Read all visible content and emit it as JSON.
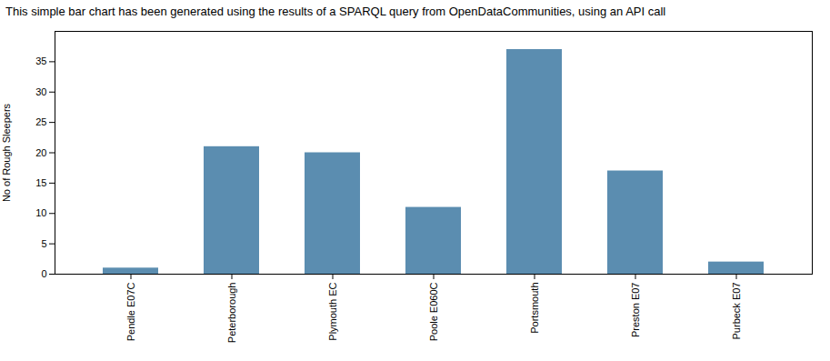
{
  "chart_data": {
    "type": "bar",
    "title": "This simple bar chart has been generated using the results of a SPARQL query from OpenDataCommunities, using an API call",
    "categories": [
      "Pendle E07C",
      "Peterborough",
      "Plymouth EC",
      "Poole E060C",
      "Portsmouth",
      "Preston E07",
      "Purbeck E07"
    ],
    "values": [
      1,
      21,
      20,
      11,
      37,
      17,
      2
    ],
    "color": "#5b8db0",
    "ylabel": "No of Rough Sleepers",
    "ylim": [
      0,
      40
    ],
    "yticks": [
      0,
      5,
      10,
      15,
      20,
      25,
      30,
      35
    ],
    "grid": false
  }
}
